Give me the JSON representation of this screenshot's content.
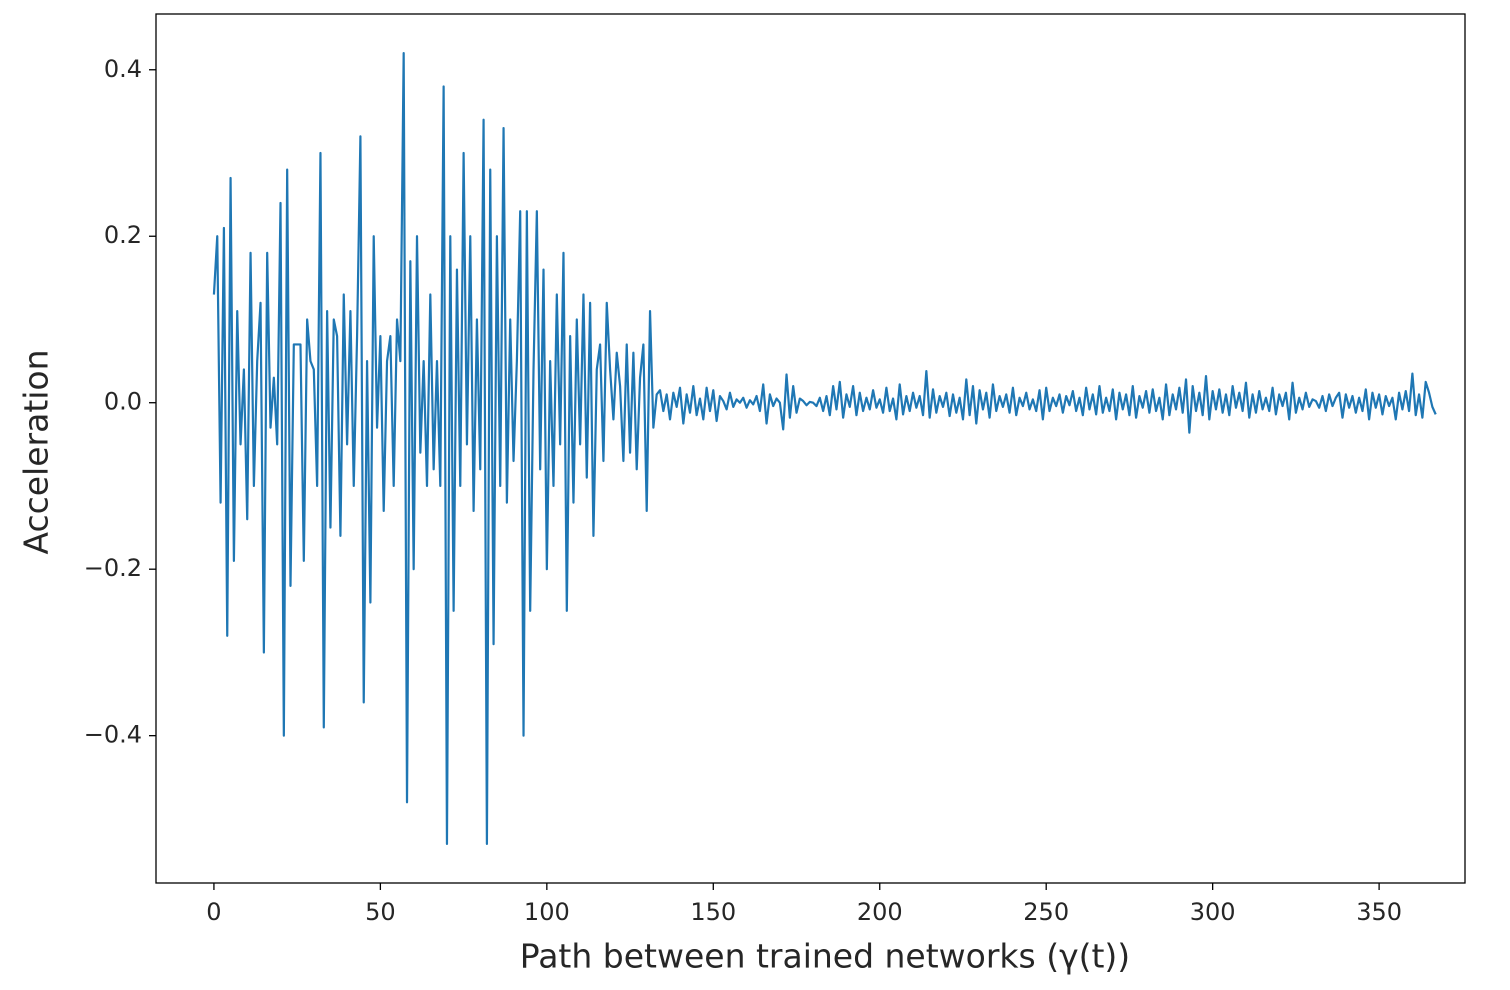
{
  "chart_data": {
    "type": "line",
    "x_label": "Path between trained networks (γ(t))",
    "y_label": "Acceleration",
    "color": "#1f77b4",
    "xlim": [
      -17.4,
      375.8
    ],
    "ylim": [
      -0.577,
      0.467
    ],
    "xticks": [
      0,
      50,
      100,
      150,
      200,
      250,
      300,
      350
    ],
    "yticks": [
      {
        "value": -0.4,
        "label": "−0.4"
      },
      {
        "value": -0.2,
        "label": "−0.2"
      },
      {
        "value": 0,
        "label": "0.0"
      },
      0.2,
      0.4
    ],
    "grid": false,
    "x": [
      0,
      1,
      2,
      3,
      4,
      5,
      6,
      7,
      8,
      9,
      10,
      11,
      12,
      13,
      14,
      15,
      16,
      17,
      18,
      19,
      20,
      21,
      22,
      23,
      24,
      25,
      26,
      27,
      28,
      29,
      30,
      31,
      32,
      33,
      34,
      35,
      36,
      37,
      38,
      39,
      40,
      41,
      42,
      43,
      44,
      45,
      46,
      47,
      48,
      49,
      50,
      51,
      52,
      53,
      54,
      55,
      56,
      57,
      58,
      59,
      60,
      61,
      62,
      63,
      64,
      65,
      66,
      67,
      68,
      69,
      70,
      71,
      72,
      73,
      74,
      75,
      76,
      77,
      78,
      79,
      80,
      81,
      82,
      83,
      84,
      85,
      86,
      87,
      88,
      89,
      90,
      91,
      92,
      93,
      94,
      95,
      96,
      97,
      98,
      99,
      100,
      101,
      102,
      103,
      104,
      105,
      106,
      107,
      108,
      109,
      110,
      111,
      112,
      113,
      114,
      115,
      116,
      117,
      118,
      119,
      120,
      121,
      122,
      123,
      124,
      125,
      126,
      127,
      128,
      129,
      130,
      131,
      132,
      133,
      134,
      135,
      136,
      137,
      138,
      139,
      140,
      141,
      142,
      143,
      144,
      145,
      146,
      147,
      148,
      149,
      150,
      151,
      152,
      153,
      154,
      155,
      156,
      157,
      158,
      159,
      160,
      161,
      162,
      163,
      164,
      165,
      166,
      167,
      168,
      169,
      170,
      171,
      172,
      173,
      174,
      175,
      176,
      177,
      178,
      179,
      180,
      181,
      182,
      183,
      184,
      185,
      186,
      187,
      188,
      189,
      190,
      191,
      192,
      193,
      194,
      195,
      196,
      197,
      198,
      199,
      200,
      201,
      202,
      203,
      204,
      205,
      206,
      207,
      208,
      209,
      210,
      211,
      212,
      213,
      214,
      215,
      216,
      217,
      218,
      219,
      220,
      221,
      222,
      223,
      224,
      225,
      226,
      227,
      228,
      229,
      230,
      231,
      232,
      233,
      234,
      235,
      236,
      237,
      238,
      239,
      240,
      241,
      242,
      243,
      244,
      245,
      246,
      247,
      248,
      249,
      250,
      251,
      252,
      253,
      254,
      255,
      256,
      257,
      258,
      259,
      260,
      261,
      262,
      263,
      264,
      265,
      266,
      267,
      268,
      269,
      270,
      271,
      272,
      273,
      274,
      275,
      276,
      277,
      278,
      279,
      280,
      281,
      282,
      283,
      284,
      285,
      286,
      287,
      288,
      289,
      290,
      291,
      292,
      293,
      294,
      295,
      296,
      297,
      298,
      299,
      300,
      301,
      302,
      303,
      304,
      305,
      306,
      307,
      308,
      309,
      310,
      311,
      312,
      313,
      314,
      315,
      316,
      317,
      318,
      319,
      320,
      321,
      322,
      323,
      324,
      325,
      326,
      327,
      328,
      329,
      330,
      331,
      332,
      333,
      334,
      335,
      336,
      337,
      338,
      339,
      340,
      341,
      342,
      343,
      344,
      345,
      346,
      347,
      348,
      349,
      350,
      351,
      352,
      353,
      354,
      355,
      356,
      357,
      358,
      359,
      360,
      361,
      362,
      363,
      364,
      365,
      366,
      367
    ],
    "values": [
      0.13,
      0.2,
      -0.12,
      0.21,
      -0.28,
      0.27,
      -0.19,
      0.11,
      -0.05,
      0.04,
      -0.14,
      0.18,
      -0.1,
      0.05,
      0.12,
      -0.3,
      0.18,
      -0.03,
      0.03,
      -0.05,
      0.24,
      -0.4,
      0.28,
      -0.22,
      0.07,
      0.07,
      0.07,
      -0.19,
      0.1,
      0.05,
      0.04,
      -0.1,
      0.3,
      -0.39,
      0.11,
      -0.15,
      0.1,
      0.08,
      -0.16,
      0.13,
      -0.05,
      0.11,
      -0.1,
      0.08,
      0.32,
      -0.36,
      0.05,
      -0.24,
      0.2,
      -0.03,
      0.08,
      -0.13,
      0.05,
      0.08,
      -0.1,
      0.1,
      0.05,
      0.42,
      -0.48,
      0.17,
      -0.2,
      0.2,
      -0.06,
      0.05,
      -0.1,
      0.13,
      -0.08,
      0.05,
      -0.1,
      0.38,
      -0.53,
      0.2,
      -0.25,
      0.16,
      -0.1,
      0.3,
      -0.05,
      0.2,
      -0.13,
      0.1,
      -0.08,
      0.34,
      -0.53,
      0.28,
      -0.29,
      0.2,
      -0.1,
      0.33,
      -0.12,
      0.1,
      -0.07,
      0.05,
      0.23,
      -0.4,
      0.23,
      -0.25,
      0.04,
      0.23,
      -0.08,
      0.16,
      -0.2,
      0.05,
      -0.1,
      0.13,
      -0.05,
      0.18,
      -0.25,
      0.08,
      -0.12,
      0.1,
      -0.05,
      0.13,
      -0.09,
      0.12,
      -0.16,
      0.04,
      0.07,
      -0.07,
      0.12,
      0.04,
      -0.02,
      0.06,
      0.02,
      -0.07,
      0.07,
      -0.06,
      0.06,
      -0.08,
      0.03,
      0.07,
      -0.13,
      0.11,
      -0.03,
      0.01,
      0.015,
      -0.01,
      0.01,
      -0.02,
      0.012,
      -0.005,
      0.018,
      -0.025,
      0.01,
      -0.012,
      0.02,
      -0.015,
      0.005,
      -0.02,
      0.018,
      -0.01,
      0.015,
      -0.022,
      0.008,
      0.002,
      -0.008,
      0.012,
      -0.005,
      0.004,
      0.0,
      0.006,
      -0.006,
      0.003,
      -0.002,
      0.008,
      -0.01,
      0.022,
      -0.025,
      0.01,
      -0.004,
      0.005,
      0.0,
      -0.032,
      0.034,
      -0.018,
      0.02,
      -0.012,
      0.005,
      0.002,
      -0.003,
      0.001,
      0.0,
      -0.004,
      0.006,
      -0.01,
      0.008,
      -0.015,
      0.02,
      -0.008,
      0.025,
      -0.018,
      0.01,
      -0.005,
      0.02,
      -0.015,
      0.012,
      -0.01,
      0.006,
      -0.008,
      0.015,
      -0.006,
      0.004,
      -0.012,
      0.018,
      -0.01,
      0.005,
      -0.02,
      0.022,
      -0.014,
      0.008,
      -0.01,
      0.012,
      -0.006,
      0.008,
      -0.015,
      0.038,
      -0.018,
      0.016,
      -0.012,
      0.008,
      -0.005,
      0.012,
      -0.016,
      0.01,
      -0.012,
      0.006,
      -0.02,
      0.028,
      -0.015,
      0.02,
      -0.025,
      0.015,
      -0.008,
      0.012,
      -0.018,
      0.022,
      -0.01,
      0.008,
      -0.005,
      0.01,
      -0.012,
      0.018,
      -0.015,
      0.006,
      -0.004,
      0.012,
      -0.008,
      0.004,
      -0.01,
      0.015,
      -0.02,
      0.018,
      -0.01,
      0.006,
      -0.004,
      0.01,
      -0.012,
      0.008,
      -0.003,
      0.014,
      -0.01,
      0.006,
      -0.015,
      0.018,
      -0.008,
      0.01,
      -0.014,
      0.02,
      -0.012,
      0.006,
      -0.01,
      0.016,
      -0.02,
      0.012,
      -0.008,
      0.01,
      -0.015,
      0.02,
      -0.018,
      0.008,
      -0.006,
      0.014,
      -0.012,
      0.016,
      -0.01,
      0.006,
      -0.02,
      0.022,
      -0.015,
      0.01,
      -0.008,
      0.018,
      -0.012,
      0.028,
      -0.036,
      0.02,
      -0.01,
      0.012,
      -0.015,
      0.032,
      -0.02,
      0.014,
      -0.008,
      0.016,
      -0.012,
      0.01,
      -0.015,
      0.02,
      -0.006,
      0.012,
      -0.01,
      0.024,
      -0.018,
      0.01,
      -0.012,
      0.014,
      -0.008,
      0.006,
      -0.01,
      0.018,
      -0.014,
      0.01,
      -0.004,
      0.012,
      -0.02,
      0.024,
      -0.012,
      0.006,
      -0.008,
      0.012,
      -0.005,
      0.004,
      0.002,
      -0.006,
      0.008,
      -0.01,
      0.01,
      -0.004,
      0.006,
      0.012,
      -0.018,
      0.01,
      -0.006,
      0.008,
      -0.012,
      0.006,
      -0.01,
      0.016,
      -0.02,
      0.012,
      -0.006,
      0.01,
      -0.014,
      0.008,
      -0.004,
      0.006,
      -0.02,
      0.012,
      -0.008,
      0.014,
      -0.01,
      0.035,
      -0.015,
      0.01,
      -0.018,
      0.025,
      0.012,
      -0.005,
      -0.014
    ]
  }
}
